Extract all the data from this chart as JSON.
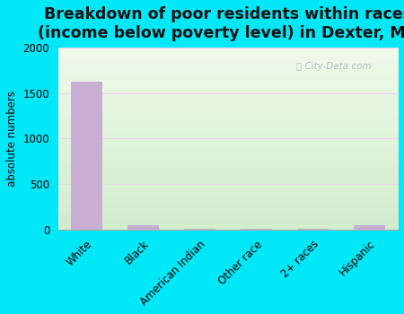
{
  "title": "Breakdown of poor residents within races\n(income below poverty level) in Dexter, MO",
  "categories": [
    "White",
    "Black",
    "American Indian",
    "Other race",
    "2+ races",
    "Hispanic"
  ],
  "values": [
    1620,
    45,
    8,
    8,
    8,
    50
  ],
  "bar_color": "#c9aed4",
  "ylabel": "absolute numbers",
  "ylim": [
    0,
    2000
  ],
  "yticks": [
    0,
    500,
    1000,
    1500,
    2000
  ],
  "background_outer": "#00e8f8",
  "background_grad_top": "#f4faf0",
  "background_grad_bottom": "#d8efd0",
  "title_fontsize": 12.5,
  "axis_fontsize": 8.5,
  "watermark": "City-Data.com"
}
